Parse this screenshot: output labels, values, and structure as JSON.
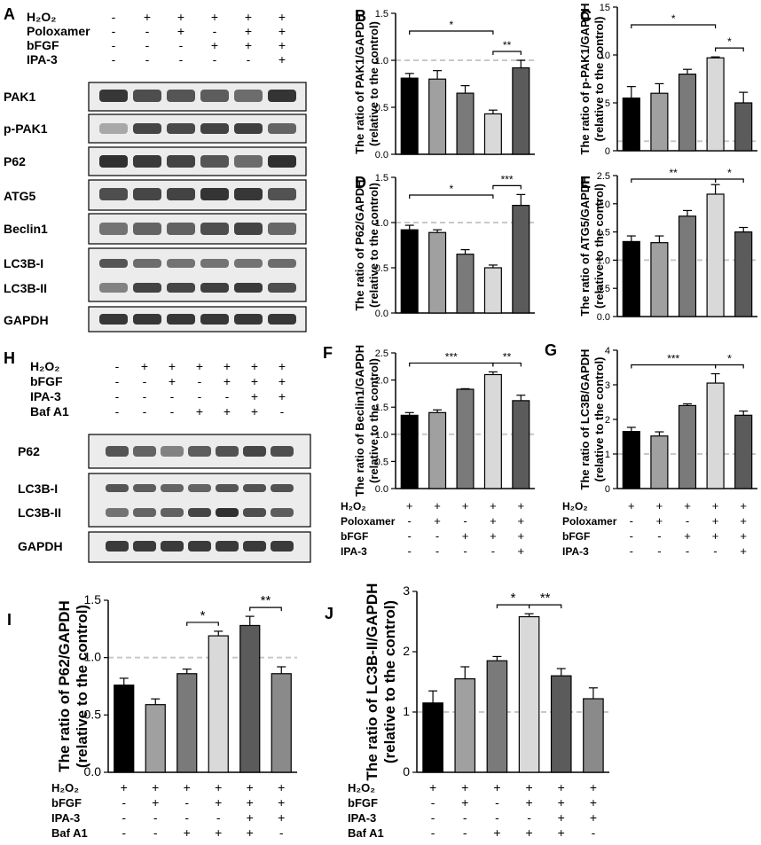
{
  "colors": {
    "black": "#000000",
    "dark": "#5b5b5b",
    "mid": "#7a7a7a",
    "mid2": "#8a8a8a",
    "light": "#a0a0a0",
    "lightest": "#d9d9d9",
    "refline": "#c8c8c8"
  },
  "blotA": {
    "label": "A",
    "conditions": [
      {
        "name": "H₂O₂",
        "values": [
          "-",
          "+",
          "+",
          "+",
          "+",
          "+"
        ]
      },
      {
        "name": "Poloxamer",
        "values": [
          "-",
          "-",
          "+",
          "-",
          "+",
          "+"
        ]
      },
      {
        "name": "bFGF",
        "values": [
          "-",
          "-",
          "-",
          "+",
          "+",
          "+"
        ]
      },
      {
        "name": "IPA-3",
        "values": [
          "-",
          "-",
          "-",
          "-",
          "-",
          "+"
        ]
      }
    ],
    "bands": [
      "PAK1",
      "p-PAK1",
      "P62",
      "ATG5",
      "Beclin1",
      "LC3B-I",
      "LC3B-II",
      "GAPDH"
    ]
  },
  "blotH": {
    "label": "H",
    "conditions": [
      {
        "name": "H₂O₂",
        "values": [
          "-",
          "+",
          "+",
          "+",
          "+",
          "+",
          "+"
        ]
      },
      {
        "name": "bFGF",
        "values": [
          "-",
          "-",
          "+",
          "-",
          "+",
          "+",
          "+"
        ]
      },
      {
        "name": "IPA-3",
        "values": [
          "-",
          "-",
          "-",
          "-",
          "-",
          "+",
          "+"
        ]
      },
      {
        "name": "Baf A1",
        "values": [
          "-",
          "-",
          "-",
          "+",
          "+",
          "+",
          "-"
        ]
      }
    ],
    "bands": [
      "P62",
      "LC3B-I",
      "LC3B-II",
      "GAPDH"
    ]
  },
  "chart_data": [
    {
      "panel": "B",
      "type": "bar",
      "ylabel": "The ratio of PAK1/GAPDH",
      "ylabel2": "(relative to the control)",
      "ylim": [
        0,
        1.5
      ],
      "yticks": [
        "0.0",
        "0.5",
        "1.0",
        "1.5"
      ],
      "reference_line": 1.0,
      "values": [
        0.81,
        0.8,
        0.65,
        0.43,
        0.92
      ],
      "errors": [
        0.05,
        0.09,
        0.08,
        0.04,
        0.08
      ],
      "significance": [
        {
          "from": 0,
          "to": 3,
          "label": "*"
        },
        {
          "from": 3,
          "to": 4,
          "label": "**"
        }
      ]
    },
    {
      "panel": "C",
      "type": "bar",
      "ylabel": "The ratio of p-PAK1/GAPDH",
      "ylabel2": "(relative to the control)",
      "ylim": [
        0,
        15
      ],
      "yticks": [
        "0",
        "5",
        "10",
        "15"
      ],
      "reference_line": 1.0,
      "values": [
        5.5,
        6.0,
        8.0,
        9.7,
        5.0
      ],
      "errors": [
        1.2,
        1.0,
        0.5,
        0.1,
        1.1
      ],
      "significance": [
        {
          "from": 0,
          "to": 3,
          "label": "*"
        },
        {
          "from": 3,
          "to": 4,
          "label": "*"
        }
      ]
    },
    {
      "panel": "D",
      "type": "bar",
      "ylabel": "The ratio of P62/GAPDH",
      "ylabel2": "(relative to the control)",
      "ylim": [
        0,
        1.5
      ],
      "yticks": [
        "0.0",
        "0.5",
        "1.0",
        "1.5"
      ],
      "reference_line": 1.0,
      "values": [
        0.92,
        0.89,
        0.65,
        0.5,
        1.19
      ],
      "errors": [
        0.05,
        0.03,
        0.05,
        0.03,
        0.12
      ],
      "significance": [
        {
          "from": 0,
          "to": 3,
          "label": "*"
        },
        {
          "from": 3,
          "to": 4,
          "label": "***"
        }
      ]
    },
    {
      "panel": "E",
      "type": "bar",
      "ylabel": "The ratio of ATG5/GAPDH",
      "ylabel2": "(relative to the control)",
      "ylim": [
        0,
        2.5
      ],
      "yticks": [
        "0.0",
        "0.5",
        "1.0",
        "1.5",
        "2.0",
        "2.5"
      ],
      "reference_line": 1.0,
      "values": [
        1.33,
        1.31,
        1.78,
        2.17,
        1.5
      ],
      "errors": [
        0.1,
        0.12,
        0.1,
        0.17,
        0.08
      ],
      "significance": [
        {
          "from": 0,
          "to": 3,
          "label": "**"
        },
        {
          "from": 3,
          "to": 4,
          "label": "*"
        }
      ]
    },
    {
      "panel": "F",
      "type": "bar",
      "ylabel": "The ratio of Beclin1/GAPDH",
      "ylabel2": "(relative to the control)",
      "ylim": [
        0,
        2.5
      ],
      "yticks": [
        "0.0",
        "0.5",
        "1.0",
        "1.5",
        "2.0",
        "2.5"
      ],
      "reference_line": 1.0,
      "values": [
        1.35,
        1.4,
        1.83,
        2.1,
        1.62
      ],
      "errors": [
        0.05,
        0.05,
        0.01,
        0.05,
        0.1
      ],
      "significance": [
        {
          "from": 0,
          "to": 3,
          "label": "***"
        },
        {
          "from": 3,
          "to": 4,
          "label": "**"
        }
      ],
      "conditions": [
        {
          "name": "H₂O₂",
          "values": [
            "+",
            "+",
            "+",
            "+",
            "+"
          ]
        },
        {
          "name": "Poloxamer",
          "values": [
            "-",
            "+",
            "-",
            "+",
            "+"
          ]
        },
        {
          "name": "bFGF",
          "values": [
            "-",
            "-",
            "+",
            "+",
            "+"
          ]
        },
        {
          "name": "IPA-3",
          "values": [
            "-",
            "-",
            "-",
            "-",
            "+"
          ]
        }
      ]
    },
    {
      "panel": "G",
      "type": "bar",
      "ylabel": "The ratio of LC3B/GAPDH",
      "ylabel2": "(relative to the control)",
      "ylim": [
        0,
        4
      ],
      "yticks": [
        "0",
        "1",
        "2",
        "3",
        "4"
      ],
      "reference_line": 1.0,
      "values": [
        1.65,
        1.52,
        2.4,
        3.05,
        2.12
      ],
      "errors": [
        0.12,
        0.12,
        0.05,
        0.27,
        0.12
      ],
      "significance": [
        {
          "from": 0,
          "to": 3,
          "label": "***"
        },
        {
          "from": 3,
          "to": 4,
          "label": "*"
        }
      ],
      "conditions": [
        {
          "name": "H₂O₂",
          "values": [
            "+",
            "+",
            "+",
            "+",
            "+"
          ]
        },
        {
          "name": "Poloxamer",
          "values": [
            "-",
            "+",
            "-",
            "+",
            "+"
          ]
        },
        {
          "name": "bFGF",
          "values": [
            "-",
            "-",
            "+",
            "+",
            "+"
          ]
        },
        {
          "name": "IPA-3",
          "values": [
            "-",
            "-",
            "-",
            "-",
            "+"
          ]
        }
      ]
    },
    {
      "panel": "I",
      "type": "bar",
      "ylabel": "The ratio of P62/GAPDH",
      "ylabel2": "(relative to the control)",
      "ylim": [
        0,
        1.5
      ],
      "yticks": [
        "0.0",
        "0.5",
        "1.0",
        "1.5"
      ],
      "reference_line": 1.0,
      "values": [
        0.76,
        0.59,
        0.86,
        1.19,
        1.28,
        0.86
      ],
      "errors": [
        0.06,
        0.05,
        0.04,
        0.04,
        0.08,
        0.06
      ],
      "significance": [
        {
          "from": 2,
          "to": 3,
          "label": "*"
        },
        {
          "from": 4,
          "to": 5,
          "label": "**"
        }
      ],
      "conditions": [
        {
          "name": "H₂O₂",
          "values": [
            "+",
            "+",
            "+",
            "+",
            "+",
            "+"
          ]
        },
        {
          "name": "bFGF",
          "values": [
            "-",
            "+",
            "-",
            "+",
            "+",
            "+"
          ]
        },
        {
          "name": "IPA-3",
          "values": [
            "-",
            "-",
            "-",
            "-",
            "+",
            "+"
          ]
        },
        {
          "name": "Baf A1",
          "values": [
            "-",
            "-",
            "+",
            "+",
            "+",
            "-"
          ]
        }
      ]
    },
    {
      "panel": "J",
      "type": "bar",
      "ylabel": "The ratio of LC3B-II/GAPDH",
      "ylabel2": "(relative to the control)",
      "ylim": [
        0,
        3
      ],
      "yticks": [
        "0",
        "1",
        "2",
        "3"
      ],
      "reference_line": 1.0,
      "values": [
        1.15,
        1.55,
        1.85,
        2.58,
        1.6,
        1.22
      ],
      "errors": [
        0.2,
        0.2,
        0.07,
        0.05,
        0.12,
        0.18
      ],
      "significance": [
        {
          "from": 2,
          "to": 3,
          "label": "*"
        },
        {
          "from": 3,
          "to": 4,
          "label": "**"
        }
      ],
      "conditions": [
        {
          "name": "H₂O₂",
          "values": [
            "+",
            "+",
            "+",
            "+",
            "+",
            "+"
          ]
        },
        {
          "name": "bFGF",
          "values": [
            "-",
            "+",
            "-",
            "+",
            "+",
            "+"
          ]
        },
        {
          "name": "IPA-3",
          "values": [
            "-",
            "-",
            "-",
            "-",
            "+",
            "+"
          ]
        },
        {
          "name": "Baf A1",
          "values": [
            "-",
            "-",
            "+",
            "+",
            "+",
            "-"
          ]
        }
      ]
    }
  ]
}
